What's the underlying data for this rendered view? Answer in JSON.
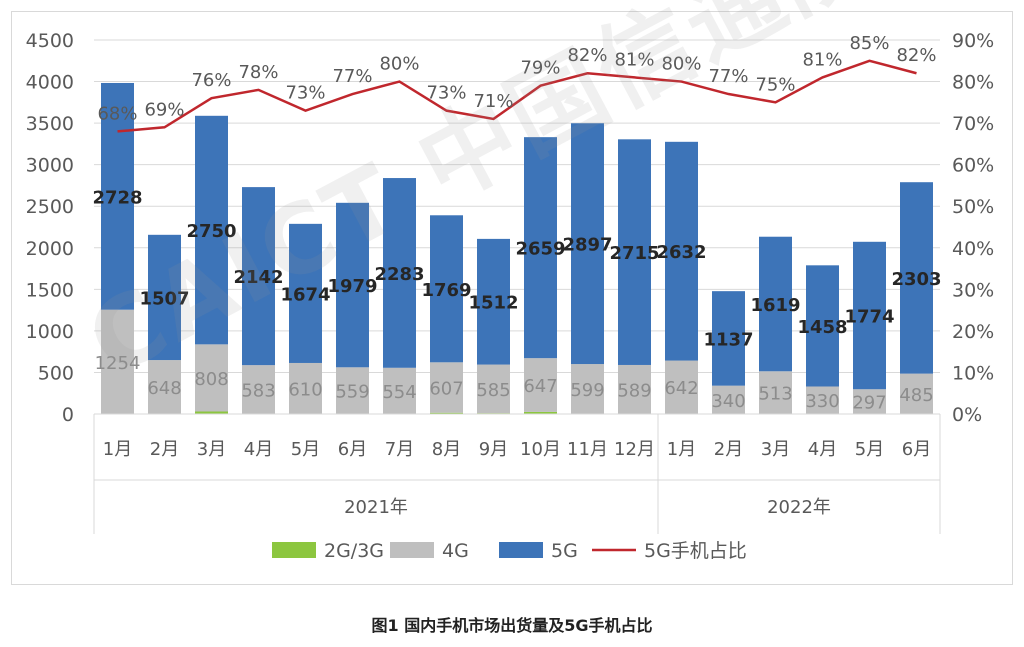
{
  "chart_data": {
    "type": "bar",
    "stacked": true,
    "years": [
      {
        "label": "2021年",
        "months": [
          "1月",
          "2月",
          "3月",
          "4月",
          "5月",
          "6月",
          "7月",
          "8月",
          "9月",
          "10月",
          "11月",
          "12月"
        ]
      },
      {
        "label": "2022年",
        "months": [
          "1月",
          "2月",
          "3月",
          "4月",
          "5月",
          "6月"
        ]
      }
    ],
    "categories": [
      "1月",
      "2月",
      "3月",
      "4月",
      "5月",
      "6月",
      "7月",
      "8月",
      "9月",
      "10月",
      "11月",
      "12月",
      "1月",
      "2月",
      "3月",
      "4月",
      "5月",
      "6月"
    ],
    "series": [
      {
        "name": "2G/3G",
        "color": "#8cc63f",
        "values": [
          1,
          1,
          30,
          5,
          4,
          3,
          2,
          15,
          10,
          25,
          2,
          1,
          1,
          1,
          1,
          1,
          1,
          1
        ]
      },
      {
        "name": "4G",
        "color": "#bfbfbf",
        "values": [
          1254,
          648,
          808,
          583,
          610,
          559,
          554,
          607,
          585,
          647,
          599,
          589,
          642,
          340,
          513,
          330,
          297,
          485
        ]
      },
      {
        "name": "5G",
        "color": "#3d74b8",
        "values": [
          2728,
          1507,
          2750,
          2142,
          1674,
          1979,
          2283,
          1769,
          1512,
          2659,
          2897,
          2715,
          2632,
          1137,
          1619,
          1458,
          1774,
          2303
        ]
      }
    ],
    "line": {
      "name": "5G手机占比",
      "color": "#c0272d",
      "values": [
        68,
        69,
        76,
        78,
        73,
        77,
        80,
        73,
        71,
        79,
        82,
        81,
        80,
        77,
        75,
        81,
        85,
        82
      ]
    },
    "ylim": [
      0,
      4500
    ],
    "yticks": [
      "0",
      "500",
      "1000",
      "1500",
      "2000",
      "2500",
      "3000",
      "3500",
      "4000",
      "4500"
    ],
    "y2lim": [
      0,
      90
    ],
    "y2ticks": [
      "0%",
      "10%",
      "20%",
      "30%",
      "40%",
      "50%",
      "60%",
      "70%",
      "80%",
      "90%"
    ],
    "grid": true,
    "legend": "bottom"
  },
  "caption": "图1  国内手机市场出货量及5G手机占比",
  "watermark": "CAICT 中国信通院"
}
